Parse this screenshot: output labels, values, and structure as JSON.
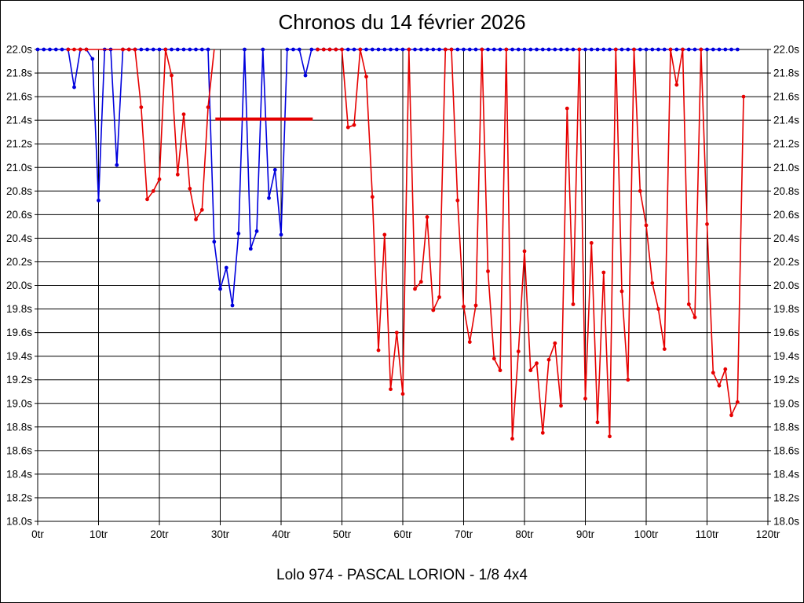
{
  "chart_data": {
    "type": "line",
    "title": "Chronos du 14 février 2026",
    "caption": "Lolo 974 - PASCAL LORION - 1/8 4x4",
    "x_axis": {
      "min": 0,
      "max": 120,
      "tick_step": 10,
      "unit": "tr",
      "tick_labels": [
        "0tr",
        "10tr",
        "20tr",
        "30tr",
        "40tr",
        "50tr",
        "60tr",
        "70tr",
        "80tr",
        "90tr",
        "100tr",
        "110tr",
        "120tr"
      ]
    },
    "y_axis": {
      "min": 18.0,
      "max": 22.0,
      "tick_step": 0.2,
      "unit": "s",
      "tick_labels": [
        "22.0s",
        "21.8s",
        "21.6s",
        "21.4s",
        "21.2s",
        "21.0s",
        "20.8s",
        "20.6s",
        "20.4s",
        "20.2s",
        "20.0s",
        "19.8s",
        "19.6s",
        "19.4s",
        "19.2s",
        "19.0s",
        "18.8s",
        "18.6s",
        "18.4s",
        "18.2s",
        "18.0s"
      ]
    },
    "grid": true,
    "clip_max_seconds": 22.0,
    "series": [
      {
        "name": "driver-blue",
        "color": "#0000dd",
        "segments": [
          {
            "points": [
              [
                0,
                22
              ],
              [
                1,
                22
              ],
              [
                2,
                22
              ],
              [
                3,
                22
              ],
              [
                4,
                22
              ],
              [
                5,
                22
              ],
              [
                6,
                21.68
              ],
              [
                7,
                22
              ],
              [
                8,
                22
              ],
              [
                9,
                21.92
              ],
              [
                10,
                20.72
              ],
              [
                11,
                22
              ],
              [
                12,
                22
              ],
              [
                13,
                21.02
              ],
              [
                14,
                22
              ],
              [
                15,
                22
              ],
              [
                16,
                22
              ],
              [
                17,
                22
              ],
              [
                18,
                22
              ],
              [
                19,
                22
              ],
              [
                20,
                22
              ],
              [
                21,
                22
              ],
              [
                22,
                22
              ],
              [
                23,
                22
              ],
              [
                24,
                22
              ],
              [
                25,
                22
              ],
              [
                26,
                22
              ],
              [
                27,
                22
              ],
              [
                28,
                22
              ],
              [
                29,
                20.37
              ],
              [
                30,
                19.97
              ],
              [
                31,
                20.15
              ],
              [
                32,
                19.83
              ],
              [
                33,
                20.44
              ],
              [
                34,
                22
              ],
              [
                35,
                20.31
              ],
              [
                36,
                20.46
              ],
              [
                37,
                22
              ],
              [
                38,
                20.74
              ],
              [
                39,
                20.98
              ],
              [
                40,
                20.43
              ],
              [
                41,
                22
              ],
              [
                42,
                22
              ],
              [
                43,
                22
              ],
              [
                44,
                21.78
              ],
              [
                45,
                22
              ],
              [
                46,
                22
              ],
              [
                47,
                22
              ],
              [
                48,
                22
              ],
              [
                49,
                22
              ],
              [
                50,
                22
              ],
              [
                51,
                22
              ],
              [
                52,
                22
              ],
              [
                53,
                22
              ],
              [
                54,
                22
              ],
              [
                55,
                22
              ],
              [
                56,
                22
              ],
              [
                57,
                22
              ],
              [
                58,
                22
              ],
              [
                59,
                22
              ],
              [
                60,
                22
              ],
              [
                61,
                22
              ],
              [
                62,
                22
              ],
              [
                63,
                22
              ],
              [
                64,
                22
              ],
              [
                65,
                22
              ],
              [
                66,
                22
              ],
              [
                67,
                22
              ],
              [
                68,
                22
              ],
              [
                69,
                22
              ],
              [
                70,
                22
              ],
              [
                71,
                22
              ],
              [
                72,
                22
              ],
              [
                73,
                22
              ],
              [
                74,
                22
              ],
              [
                75,
                22
              ],
              [
                76,
                22
              ],
              [
                77,
                22
              ],
              [
                78,
                22
              ],
              [
                79,
                22
              ],
              [
                80,
                22
              ],
              [
                81,
                22
              ],
              [
                82,
                22
              ],
              [
                83,
                22
              ],
              [
                84,
                22
              ],
              [
                85,
                22
              ],
              [
                86,
                22
              ],
              [
                87,
                22
              ],
              [
                88,
                22
              ],
              [
                89,
                22
              ],
              [
                90,
                22
              ],
              [
                91,
                22
              ],
              [
                92,
                22
              ],
              [
                93,
                22
              ],
              [
                94,
                22
              ],
              [
                95,
                22
              ],
              [
                96,
                22
              ],
              [
                97,
                22
              ],
              [
                98,
                22
              ],
              [
                99,
                22
              ],
              [
                100,
                22
              ],
              [
                101,
                22
              ],
              [
                102,
                22
              ],
              [
                103,
                22
              ],
              [
                104,
                22
              ],
              [
                105,
                22
              ],
              [
                106,
                22
              ],
              [
                107,
                22
              ],
              [
                108,
                22
              ],
              [
                109,
                22
              ],
              [
                110,
                22
              ],
              [
                111,
                22
              ],
              [
                112,
                22
              ],
              [
                113,
                22
              ],
              [
                114,
                22
              ],
              [
                115,
                22
              ]
            ],
            "no_marker_laps": []
          }
        ]
      },
      {
        "name": "driver-red",
        "color": "#e60000",
        "segments": [
          {
            "points": [
              [
                5,
                22
              ],
              [
                6,
                22
              ],
              [
                7,
                22
              ],
              [
                8,
                22
              ],
              [
                9,
                22
              ],
              [
                10,
                22
              ],
              [
                11,
                22
              ],
              [
                12,
                22
              ],
              [
                13,
                22
              ],
              [
                14,
                22
              ],
              [
                15,
                22
              ],
              [
                16,
                22
              ],
              [
                17,
                21.51
              ],
              [
                18,
                20.73
              ],
              [
                19,
                20.8
              ],
              [
                20,
                20.9
              ],
              [
                21,
                22
              ],
              [
                22,
                21.78
              ],
              [
                23,
                20.94
              ],
              [
                24,
                21.45
              ],
              [
                25,
                20.82
              ],
              [
                26,
                20.56
              ],
              [
                27,
                20.64
              ],
              [
                28,
                21.51
              ],
              [
                29,
                22
              ]
            ],
            "no_marker_laps": [
              9,
              10,
              11,
              12,
              13,
              29
            ]
          },
          {
            "points": [
              [
                46,
                22
              ],
              [
                47,
                22
              ],
              [
                48,
                22
              ],
              [
                49,
                22
              ],
              [
                50,
                22
              ],
              [
                51,
                21.34
              ],
              [
                52,
                21.36
              ],
              [
                53,
                22
              ],
              [
                54,
                21.77
              ],
              [
                55,
                20.75
              ],
              [
                56,
                19.45
              ],
              [
                57,
                20.43
              ],
              [
                58,
                19.12
              ],
              [
                59,
                19.6
              ],
              [
                60,
                19.08
              ],
              [
                61,
                22
              ],
              [
                62,
                19.97
              ],
              [
                63,
                20.03
              ],
              [
                64,
                20.58
              ],
              [
                65,
                19.79
              ],
              [
                66,
                19.9
              ],
              [
                67,
                22
              ],
              [
                68,
                22
              ],
              [
                69,
                20.72
              ],
              [
                70,
                19.82
              ],
              [
                71,
                19.52
              ],
              [
                72,
                19.83
              ],
              [
                73,
                22
              ],
              [
                74,
                20.12
              ],
              [
                75,
                19.38
              ],
              [
                76,
                19.28
              ],
              [
                77,
                22
              ],
              [
                78,
                18.7
              ],
              [
                79,
                19.44
              ],
              [
                80,
                20.29
              ],
              [
                81,
                19.28
              ],
              [
                82,
                19.34
              ],
              [
                83,
                18.75
              ],
              [
                84,
                19.37
              ],
              [
                85,
                19.51
              ],
              [
                86,
                18.98
              ],
              [
                87,
                21.5
              ],
              [
                88,
                19.84
              ],
              [
                89,
                22
              ],
              [
                90,
                19.04
              ],
              [
                91,
                20.36
              ],
              [
                92,
                18.84
              ],
              [
                93,
                20.11
              ],
              [
                94,
                18.72
              ],
              [
                95,
                22
              ],
              [
                96,
                19.95
              ],
              [
                97,
                19.2
              ],
              [
                98,
                22
              ],
              [
                99,
                20.8
              ],
              [
                100,
                20.51
              ],
              [
                101,
                20.02
              ],
              [
                102,
                19.8
              ],
              [
                103,
                19.46
              ],
              [
                104,
                22
              ],
              [
                105,
                21.7
              ],
              [
                106,
                22
              ],
              [
                107,
                19.84
              ],
              [
                108,
                19.73
              ],
              [
                109,
                22
              ],
              [
                110,
                20.52
              ],
              [
                111,
                19.26
              ],
              [
                112,
                19.15
              ],
              [
                113,
                19.29
              ],
              [
                114,
                18.9
              ],
              [
                115,
                19.01
              ],
              [
                116,
                21.6
              ]
            ],
            "no_marker_laps": []
          }
        ]
      }
    ],
    "flat_marker": {
      "name": "red-average-bar",
      "color": "#e60000",
      "lap_start": 29.2,
      "lap_end": 45.2,
      "time": 21.41
    }
  }
}
